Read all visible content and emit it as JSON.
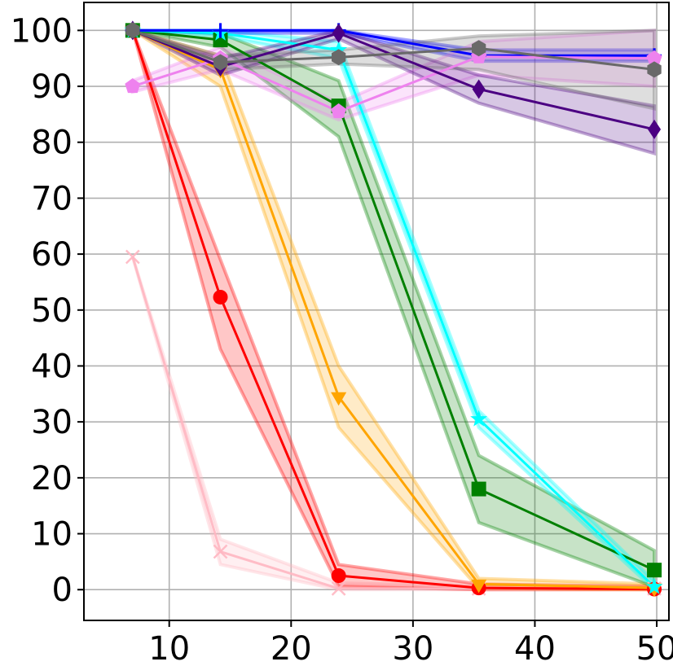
{
  "chart_data": {
    "type": "line",
    "title": "",
    "xlabel": "",
    "ylabel": "",
    "xlim": [
      3,
      51
    ],
    "ylim": [
      -5.5,
      105
    ],
    "xticks": [
      10,
      20,
      30,
      40,
      50
    ],
    "yticks": [
      0,
      10,
      20,
      30,
      40,
      50,
      60,
      70,
      80,
      90,
      100
    ],
    "grid": true,
    "legend": "none",
    "x": [
      7,
      14.2,
      23.9,
      35.4,
      49.8
    ],
    "series": [
      {
        "color": "#ffb6c1",
        "marker": "x",
        "alpha": 0.9,
        "values": [
          59.5,
          6.8,
          0.2,
          0.2,
          0.2
        ],
        "lower": [
          59.5,
          4.5,
          0,
          0,
          0
        ],
        "upper": [
          59.5,
          9.0,
          1.2,
          0.6,
          0.6
        ]
      },
      {
        "color": "#ff0000",
        "marker": "circle",
        "values": [
          100,
          52.3,
          2.5,
          0.3,
          0.1
        ],
        "lower": [
          100,
          43,
          0.6,
          0,
          0
        ],
        "upper": [
          100,
          59,
          4.5,
          1.0,
          0.6
        ]
      },
      {
        "color": "#ffa500",
        "marker": "triangle-down",
        "values": [
          100,
          93,
          34.5,
          1.0,
          0.3
        ],
        "lower": [
          100,
          90,
          29,
          0.2,
          0
        ],
        "upper": [
          100,
          95.5,
          40,
          2.0,
          1.0
        ]
      },
      {
        "color": "#008000",
        "marker": "square",
        "values": [
          100,
          98.3,
          86.5,
          18,
          3.5
        ],
        "lower": [
          100,
          97,
          81,
          12,
          0.5
        ],
        "upper": [
          100,
          99.5,
          91,
          24,
          7
        ]
      },
      {
        "color": "#00ffff",
        "marker": "star",
        "values": [
          100,
          99.5,
          96.5,
          30.5,
          0.5
        ],
        "lower": [
          100,
          99,
          95,
          29,
          0
        ],
        "upper": [
          100,
          100,
          98,
          32,
          1.5
        ]
      },
      {
        "color": "#0000ff",
        "marker": "plus",
        "values": [
          100,
          100,
          100,
          95.5,
          95.5
        ],
        "lower": [
          100,
          99.5,
          99.5,
          94.5,
          94.5
        ],
        "upper": [
          100,
          100,
          100,
          96.5,
          96.5
        ]
      },
      {
        "color": "#ee82ee",
        "marker": "pentagon",
        "values": [
          90,
          95,
          85.5,
          95.3,
          95
        ],
        "lower": [
          89,
          93,
          84,
          92,
          90
        ],
        "upper": [
          91,
          97,
          87,
          98,
          100
        ]
      },
      {
        "color": "#4b0082",
        "marker": "diamond",
        "values": [
          100,
          93.5,
          99.5,
          89.5,
          82.3
        ],
        "lower": [
          100,
          92,
          98.5,
          87,
          78
        ],
        "upper": [
          100,
          95,
          100,
          92,
          86.5
        ]
      },
      {
        "color": "#696969",
        "marker": "hexagon",
        "values": [
          100,
          94.3,
          95.2,
          96.8,
          93
        ],
        "lower": [
          100,
          93,
          94,
          93,
          86
        ],
        "upper": [
          100,
          95.5,
          96.5,
          99,
          100
        ]
      }
    ]
  }
}
